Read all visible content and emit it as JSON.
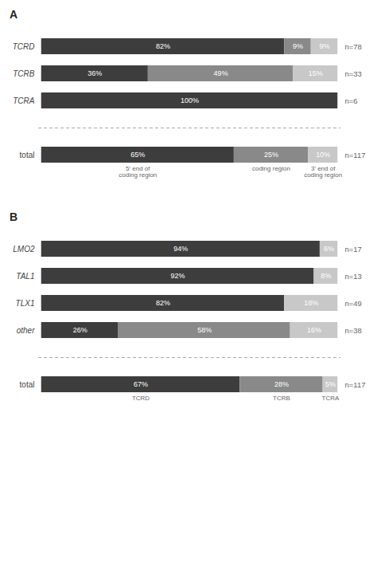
{
  "chart_data": [
    {
      "type": "bar",
      "orientation": "horizontal",
      "stacked": true,
      "title": "A",
      "categories": [
        "TCRD",
        "TCRB",
        "TCRA",
        "total"
      ],
      "annotations": [
        "n=78",
        "n=33",
        "n=6",
        "n=117"
      ],
      "series": [
        {
          "name": "5' end of\ncoding region",
          "color": "#3d3d3d",
          "values": [
            82,
            36,
            100,
            65
          ],
          "value_labels": [
            "82%",
            "36%",
            "100%",
            "65%"
          ]
        },
        {
          "name": "coding region",
          "color": "#898989",
          "values": [
            9,
            49,
            0,
            25
          ],
          "value_labels": [
            "9%",
            "49%",
            null,
            "25%"
          ]
        },
        {
          "name": "3' end of\ncoding region",
          "color": "#c8c8c8",
          "values": [
            9,
            15,
            0,
            10
          ],
          "value_labels": [
            "9%",
            "15%",
            null,
            "10%"
          ]
        }
      ],
      "xlim": [
        -1,
        101
      ],
      "data_labels": true,
      "tick_labels": "y",
      "grid": false
    },
    {
      "type": "bar",
      "orientation": "horizontal",
      "stacked": true,
      "title": "B",
      "categories": [
        "LMO2",
        "TAL1",
        "TLX1",
        "other",
        "total"
      ],
      "annotations": [
        "n=17",
        "n=13",
        "n=49",
        "n=38",
        "n=117"
      ],
      "series": [
        {
          "name": "TCRD",
          "color": "#3d3d3d",
          "values": [
            94,
            92,
            82,
            26,
            67
          ],
          "value_labels": [
            "94%",
            "92%",
            "82%",
            "26%",
            "67%"
          ]
        },
        {
          "name": "TCRB",
          "color": "#898989",
          "values": [
            0,
            0,
            0,
            58,
            28
          ],
          "value_labels": [
            null,
            null,
            null,
            "58%",
            "28%"
          ]
        },
        {
          "name": "TCRA",
          "color": "#c8c8c8",
          "values": [
            6,
            8,
            18,
            16,
            5
          ],
          "value_labels": [
            "6%",
            "8%",
            "18%",
            "16%",
            "5%"
          ]
        }
      ],
      "xlim": [
        -1,
        101
      ],
      "data_labels": true,
      "tick_labels": "y",
      "grid": false
    }
  ]
}
